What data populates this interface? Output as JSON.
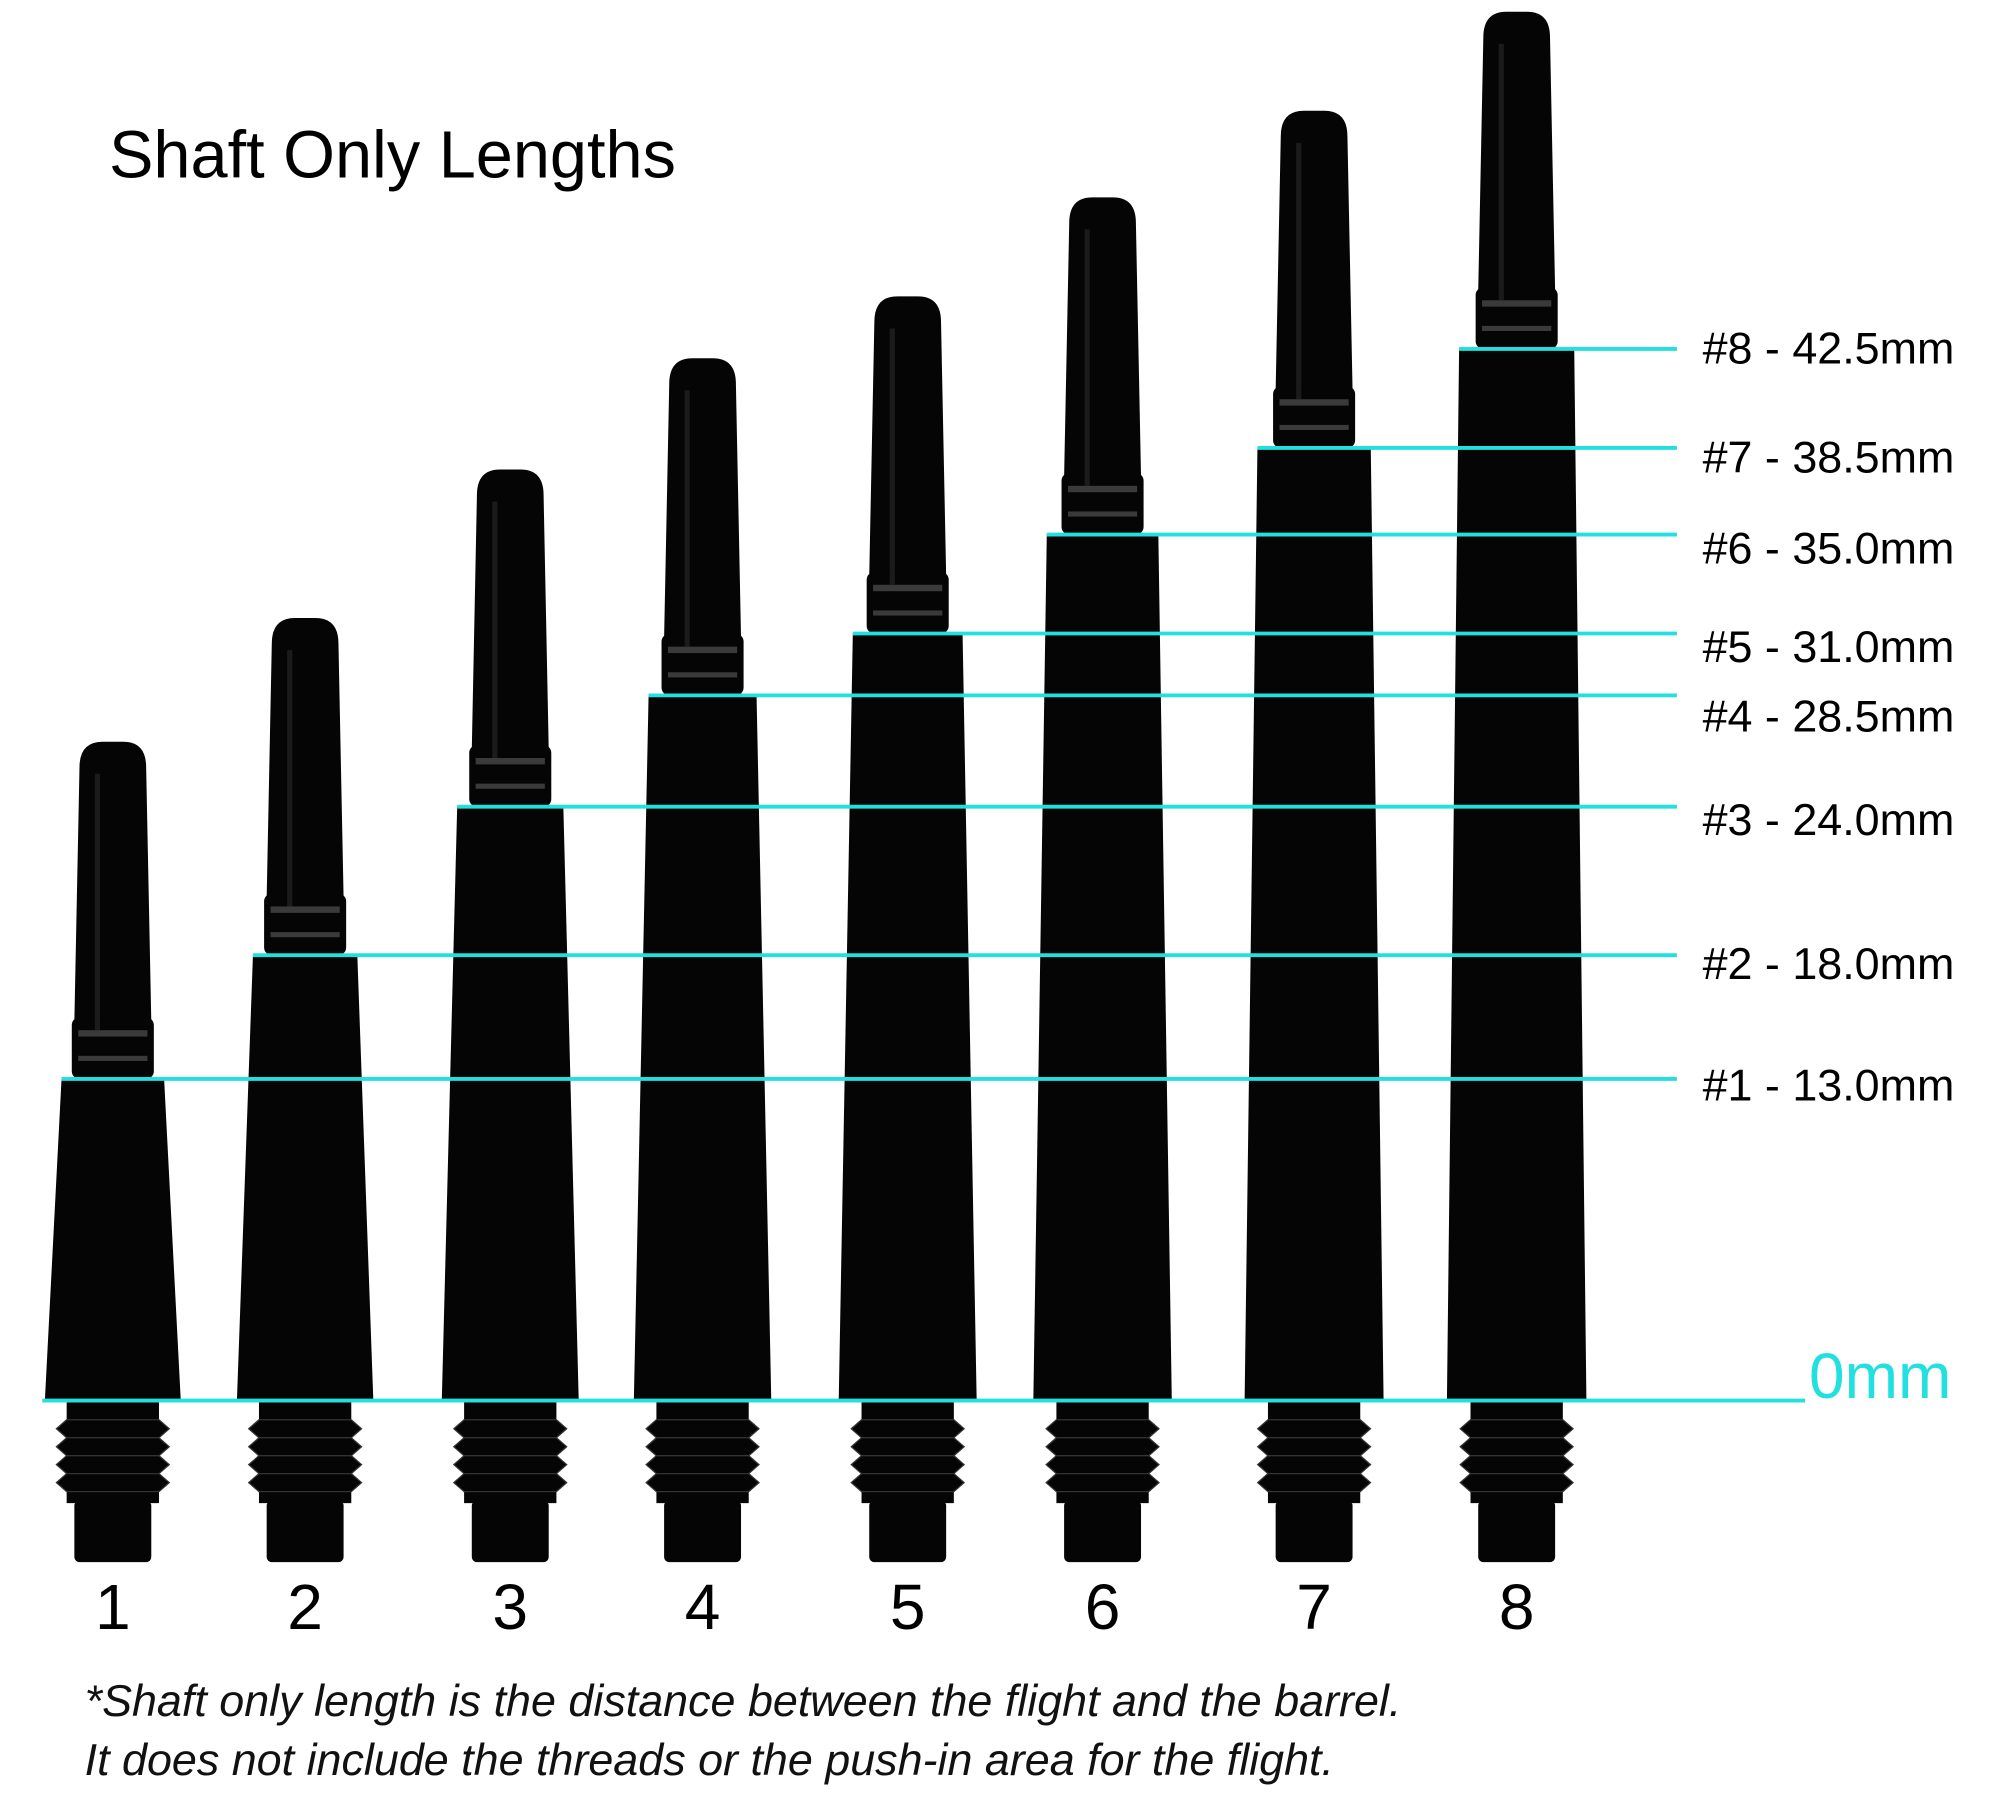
{
  "title": "Shaft Only Lengths",
  "zero_label": "0mm",
  "line_color": "#22e0e0",
  "shaft_color": "#050505",
  "chart_data": {
    "type": "diagram",
    "title": "Shaft Only Lengths",
    "unit": "mm",
    "shafts": [
      {
        "number": "1",
        "length_mm": 13.0,
        "label": "#1 - 13.0mm"
      },
      {
        "number": "2",
        "length_mm": 18.0,
        "label": "#2 - 18.0mm"
      },
      {
        "number": "3",
        "length_mm": 24.0,
        "label": "#3 - 24.0mm"
      },
      {
        "number": "4",
        "length_mm": 28.5,
        "label": "#4 - 28.5mm"
      },
      {
        "number": "5",
        "length_mm": 31.0,
        "label": "#5 - 31.0mm"
      },
      {
        "number": "6",
        "length_mm": 35.0,
        "label": "#6 - 35.0mm"
      },
      {
        "number": "7",
        "length_mm": 38.5,
        "label": "#7 - 38.5mm"
      },
      {
        "number": "8",
        "length_mm": 42.5,
        "label": "#8 - 42.5mm"
      }
    ]
  },
  "footnote": {
    "line1": "*Shaft only length is the distance between the flight and the barrel.",
    "line2": "It does not include the threads or the push-in area for the flight."
  }
}
